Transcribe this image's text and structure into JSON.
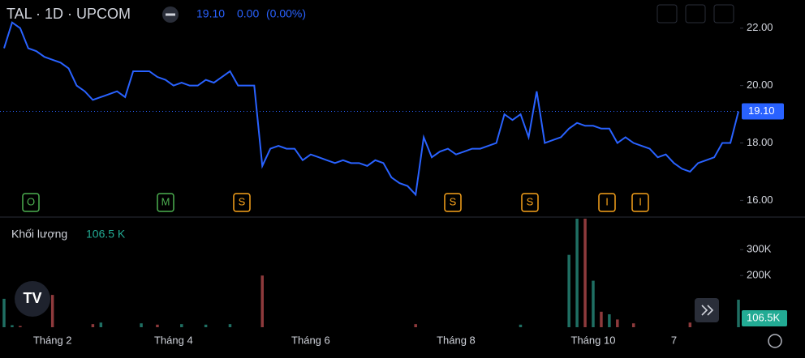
{
  "header": {
    "price": "19.10",
    "change": "0.00",
    "change_pct": "(0.00%)"
  },
  "events": [
    "O",
    "M",
    "S",
    "S",
    "S",
    "I",
    "I"
  ],
  "chart_data": [
    {
      "type": "line",
      "title": "TAL · 1D · UPCOM",
      "color": "#2962ff",
      "categories": [
        null,
        null,
        null,
        null,
        null,
        null,
        "Tháng 2",
        null,
        null,
        null,
        null,
        null,
        null,
        null,
        null,
        null,
        null,
        null,
        null,
        null,
        null,
        "Tháng 4",
        null,
        null,
        null,
        null,
        null,
        null,
        null,
        null,
        null,
        null,
        null,
        null,
        null,
        null,
        null,
        null,
        "Tháng 6",
        null,
        null,
        null,
        null,
        null,
        null,
        null,
        null,
        null,
        null,
        null,
        null,
        null,
        null,
        null,
        null,
        null,
        "Tháng 8",
        null,
        null,
        null,
        null,
        null,
        null,
        null,
        null,
        null,
        null,
        null,
        null,
        null,
        null,
        null,
        null,
        "Tháng 10",
        null,
        null,
        null,
        null,
        null,
        null,
        null,
        null,
        null,
        "7",
        null,
        null,
        null,
        null,
        null,
        null,
        null,
        null
      ],
      "values": [
        21.3,
        22.2,
        22.0,
        21.3,
        21.2,
        21.0,
        20.9,
        20.8,
        20.6,
        20.0,
        19.8,
        19.5,
        19.6,
        19.7,
        19.8,
        19.6,
        20.5,
        20.5,
        20.5,
        20.3,
        20.2,
        20.0,
        20.1,
        20.0,
        20.0,
        20.2,
        20.1,
        20.3,
        20.5,
        20.0,
        20.0,
        20.0,
        17.2,
        17.8,
        17.9,
        17.8,
        17.8,
        17.4,
        17.6,
        17.5,
        17.4,
        17.3,
        17.4,
        17.3,
        17.3,
        17.2,
        17.4,
        17.3,
        16.8,
        16.6,
        16.5,
        16.2,
        18.2,
        17.5,
        17.7,
        17.8,
        17.6,
        17.7,
        17.8,
        17.8,
        17.9,
        18.0,
        19.0,
        18.8,
        19.0,
        18.2,
        19.8,
        18.0,
        18.1,
        18.2,
        18.5,
        18.7,
        18.6,
        18.6,
        18.5,
        18.5,
        18.0,
        18.2,
        18.0,
        17.9,
        17.8,
        17.5,
        17.6,
        17.3,
        17.1,
        17.0,
        17.3,
        17.4,
        17.5,
        18.0,
        18.0,
        19.1
      ],
      "ylim": [
        15.7,
        22.7
      ],
      "yticks": [
        {
          "value": 16,
          "label": "16.00"
        },
        {
          "value": 18,
          "label": "18.00"
        },
        {
          "value": 20,
          "label": "20.00"
        },
        {
          "value": 22,
          "label": "22.00"
        }
      ],
      "last_value": {
        "value": 19.1,
        "label": "19.10"
      }
    },
    {
      "type": "bar",
      "title": "Khối lượng",
      "up_color": "#1f6f63",
      "down_color": "#8e3a3c",
      "values": [
        110000,
        8000,
        5000,
        0,
        0,
        0,
        125000,
        0,
        0,
        0,
        0,
        12000,
        18000,
        0,
        0,
        0,
        0,
        15000,
        0,
        10000,
        0,
        0,
        12000,
        0,
        0,
        10000,
        0,
        0,
        12000,
        0,
        0,
        0,
        200000,
        0,
        0,
        0,
        0,
        0,
        0,
        0,
        0,
        0,
        0,
        0,
        0,
        0,
        0,
        0,
        0,
        0,
        0,
        12000,
        0,
        0,
        0,
        0,
        0,
        0,
        0,
        0,
        0,
        0,
        0,
        0,
        10000,
        0,
        0,
        0,
        0,
        0,
        280000,
        420000,
        420000,
        180000,
        60000,
        50000,
        30000,
        0,
        15000,
        0,
        0,
        0,
        0,
        0,
        0,
        18000,
        0,
        0,
        0,
        0,
        0,
        106500
      ],
      "ylim": [
        0,
        420000
      ],
      "yticks": [
        {
          "value": 200000,
          "label": "200K"
        },
        {
          "value": 300000,
          "label": "300K"
        }
      ],
      "legend_value": {
        "value": 106500,
        "label": "106.5 K"
      },
      "last_value": {
        "value": 106500,
        "label": "106.5K"
      }
    }
  ]
}
